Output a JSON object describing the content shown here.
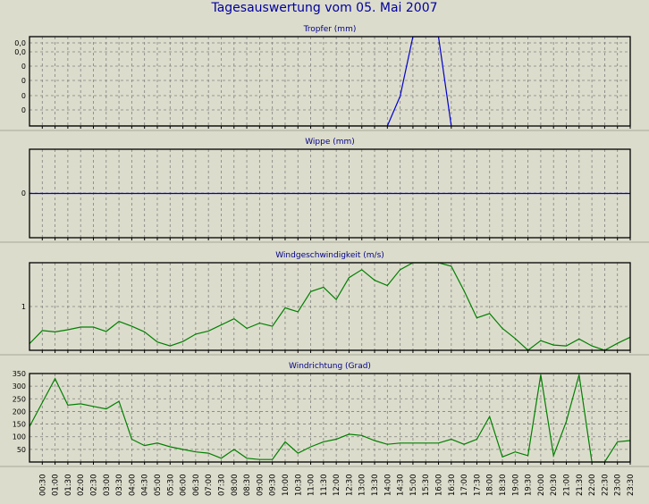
{
  "page_title": "Tagesauswertung vom 05. Mai 2007",
  "colors": {
    "background": "#dcdccc",
    "title": "#0000a0",
    "rain_line": "#0000cc",
    "wind_line": "#008000"
  },
  "x_labels": [
    "00:30",
    "01:00",
    "01:30",
    "02:00",
    "02:30",
    "03:00",
    "03:30",
    "04:00",
    "04:30",
    "05:00",
    "05:30",
    "06:00",
    "06:30",
    "07:00",
    "07:30",
    "08:00",
    "08:30",
    "09:00",
    "09:30",
    "10:00",
    "10:30",
    "11:00",
    "11:30",
    "12:00",
    "12:30",
    "13:00",
    "13:30",
    "14:00",
    "14:30",
    "15:00",
    "15:30",
    "16:00",
    "16:30",
    "17:00",
    "17:30",
    "18:00",
    "18:30",
    "19:00",
    "19:30",
    "20:00",
    "20:30",
    "21:00",
    "21:30",
    "22:00",
    "22:30",
    "23:00",
    "23:30"
  ],
  "chart_data": [
    {
      "type": "line",
      "title": "Tropfer (mm)",
      "y_tick_labels": [
        "0,0",
        "0,0",
        "0",
        "0",
        "0",
        "0"
      ],
      "ylim": [
        0,
        0.06
      ],
      "grid": true,
      "series": [
        {
          "x": [
            "00:00",
            "14:00",
            "14:30",
            "15:00",
            "16:00",
            "16:30"
          ],
          "y": [
            0,
            0,
            0.02,
            0.06,
            0.06,
            0
          ]
        }
      ]
    },
    {
      "type": "line",
      "title": "Wippe (mm)",
      "y_tick_labels": [
        "0"
      ],
      "ylim": [
        -1,
        1
      ],
      "grid": true,
      "series": [
        {
          "x": [
            "00:00",
            "23:30"
          ],
          "y": [
            0,
            0
          ]
        }
      ]
    },
    {
      "type": "line",
      "title": "Windgeschwindigkeit (m/s)",
      "y_tick_labels": [
        "1"
      ],
      "ylim": [
        0,
        2
      ],
      "grid": true,
      "series": [
        {
          "x": [
            "00:00",
            "00:30",
            "01:00",
            "01:30",
            "02:00",
            "02:30",
            "03:00",
            "03:30",
            "04:00",
            "04:30",
            "05:00",
            "05:30",
            "06:00",
            "06:30",
            "07:00",
            "07:30",
            "08:00",
            "08:30",
            "09:00",
            "09:30",
            "10:00",
            "10:30",
            "11:00",
            "11:30",
            "12:00",
            "12:30",
            "13:00",
            "13:30",
            "14:00",
            "14:30",
            "15:00",
            "15:30",
            "16:00",
            "16:30",
            "17:00",
            "17:30",
            "18:00",
            "18:30",
            "19:00",
            "19:30",
            "20:00",
            "20:30",
            "21:00",
            "21:30",
            "22:00",
            "22:30",
            "23:00",
            "23:30"
          ],
          "y": [
            0.15,
            0.45,
            0.42,
            0.47,
            0.53,
            0.53,
            0.43,
            0.66,
            0.55,
            0.42,
            0.19,
            0.1,
            0.2,
            0.37,
            0.44,
            0.58,
            0.72,
            0.5,
            0.62,
            0.55,
            0.97,
            0.88,
            1.34,
            1.44,
            1.16,
            1.66,
            1.84,
            1.6,
            1.48,
            1.84,
            2.0,
            2.0,
            2.0,
            1.92,
            1.36,
            0.74,
            0.84,
            0.5,
            0.27,
            0.0,
            0.22,
            0.12,
            0.1,
            0.26,
            0.1,
            0.0,
            0.16,
            0.3
          ]
        }
      ]
    },
    {
      "type": "line",
      "title": "Windrichtung (Grad)",
      "y_tick_labels": [
        "350",
        "300",
        "250",
        "200",
        "150",
        "100",
        "50"
      ],
      "ylim": [
        0,
        350
      ],
      "grid": true,
      "series": [
        {
          "x": [
            "00:00",
            "00:30",
            "01:00",
            "01:30",
            "02:00",
            "02:30",
            "03:00",
            "03:30",
            "04:00",
            "04:30",
            "05:00",
            "05:30",
            "06:00",
            "06:30",
            "07:00",
            "07:30",
            "08:00",
            "08:30",
            "09:00",
            "09:30",
            "10:00",
            "10:30",
            "11:00",
            "11:30",
            "12:00",
            "12:30",
            "13:00",
            "13:30",
            "14:00",
            "14:30",
            "15:00",
            "15:30",
            "16:00",
            "16:30",
            "17:00",
            "17:30",
            "18:00",
            "18:30",
            "19:00",
            "19:30",
            "20:00",
            "20:30",
            "21:00",
            "21:30",
            "22:00",
            "22:30",
            "23:00",
            "23:30"
          ],
          "y": [
            140,
            235,
            330,
            225,
            230,
            220,
            210,
            240,
            90,
            65,
            75,
            60,
            50,
            40,
            35,
            15,
            50,
            15,
            10,
            10,
            80,
            35,
            60,
            80,
            90,
            110,
            105,
            85,
            70,
            75,
            75,
            75,
            75,
            90,
            70,
            90,
            180,
            20,
            40,
            25,
            345,
            25,
            160,
            345,
            0,
            0,
            80,
            85
          ]
        }
      ]
    }
  ]
}
